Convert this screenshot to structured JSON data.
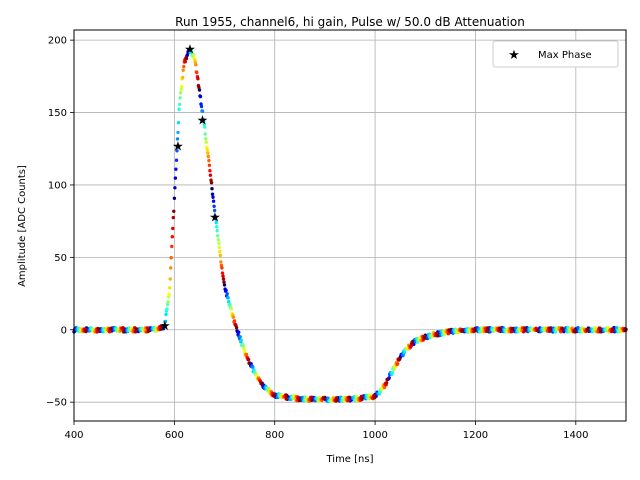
{
  "chart_data": {
    "type": "scatter",
    "title": "Run 1955, channel6, hi gain, Pulse w/ 50.0 dB Attenuation",
    "xlabel": "Time [ns]",
    "ylabel": "Amplitude [ADC Counts]",
    "xlim": [
      400,
      1500
    ],
    "ylim": [
      -63,
      207
    ],
    "xticks": [
      400,
      600,
      800,
      1000,
      1200,
      1400
    ],
    "yticks": [
      -50,
      0,
      50,
      100,
      150,
      200
    ],
    "grid": true,
    "legend": {
      "position": "top-right",
      "entries": [
        "Max Phase"
      ]
    },
    "colormap": "jet",
    "pulse_shape": {
      "t": [
        400,
        560,
        580,
        590,
        600,
        610,
        620,
        630,
        640,
        650,
        660,
        670,
        680,
        690,
        700,
        720,
        740,
        760,
        780,
        800,
        830,
        860,
        900,
        950,
        1000,
        1020,
        1040,
        1060,
        1080,
        1100,
        1120,
        1150,
        1200,
        1300,
        1500
      ],
      "amplitude": [
        0,
        0,
        2,
        25,
        90,
        155,
        185,
        193,
        188,
        165,
        140,
        112,
        82,
        55,
        30,
        5,
        -15,
        -30,
        -40,
        -45,
        -47,
        -48,
        -48,
        -48,
        -46,
        -38,
        -25,
        -14,
        -8,
        -5,
        -3,
        -1,
        0,
        0,
        0
      ]
    },
    "max_phase_points": {
      "name": "Max Phase",
      "x": [
        581,
        607,
        631,
        656,
        681
      ],
      "y": [
        3,
        127,
        194,
        145,
        78
      ]
    }
  }
}
